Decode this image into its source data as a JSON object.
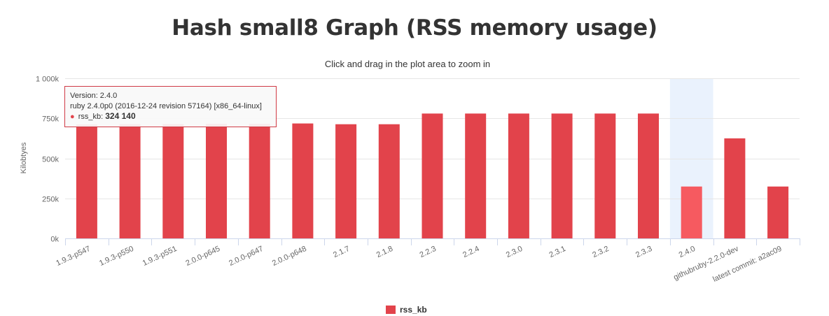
{
  "title": "Hash small8 Graph (RSS memory usage)",
  "subtitle": "Click and drag in the plot area to zoom in",
  "colors": {
    "bar": "#e2434b",
    "bar_highlight": "#f65a60",
    "hover_band": "#eaf2fd",
    "grid": "#e6e6e6",
    "axis": "#ccd6eb"
  },
  "tooltip": {
    "line1": "Version: 2.4.0",
    "line2": "ruby 2.4.0p0 (2016-12-24 revision 57164) [x86_64-linux]",
    "series_label": "rss_kb:",
    "value_text": "324 140"
  },
  "legend": {
    "label": "rss_kb"
  },
  "chart_data": {
    "type": "bar",
    "title": "Hash small8 Graph (RSS memory usage)",
    "subtitle": "Click and drag in the plot area to zoom in",
    "ylabel": "Kilobtyes",
    "xlabel": "",
    "ylim": [
      0,
      1000000
    ],
    "yticks": [
      0,
      250000,
      500000,
      750000,
      1000000
    ],
    "ytick_labels": [
      "0k",
      "250k",
      "500k",
      "750k",
      "1 000k"
    ],
    "grid": true,
    "legend_position": "bottom-center",
    "highlighted_category": "2.4.0",
    "categories": [
      "1.9.3-p547",
      "1.9.3-p550",
      "1.9.3-p551",
      "2.0.0-p645",
      "2.0.0-p647",
      "2.0.0-p648",
      "2.1.7",
      "2.1.8",
      "2.2.3",
      "2.2.4",
      "2.3.0",
      "2.3.1",
      "2.3.2",
      "2.3.3",
      "2.4.0",
      "githubruby-2.2.0-dev",
      "latest commit: a2ac09"
    ],
    "series": [
      {
        "name": "rss_kb",
        "values": [
          712000,
          713000,
          714000,
          715000,
          715000,
          718000,
          713000,
          713000,
          780000,
          780000,
          780000,
          780000,
          780000,
          780000,
          324140,
          625000,
          324000
        ]
      }
    ]
  }
}
